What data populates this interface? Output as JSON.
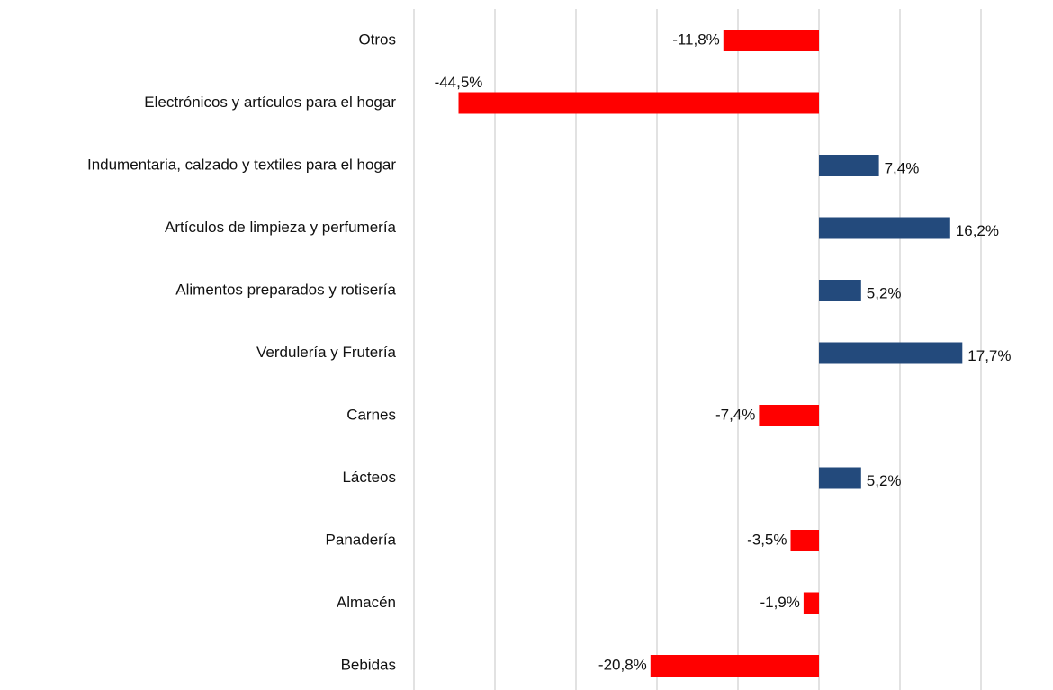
{
  "chart_data": {
    "type": "hbar",
    "categories": [
      "Otros",
      "Electrónicos y artículos para el hogar",
      "Indumentaria, calzado y textiles para el hogar",
      "Artículos de limpieza y perfumería",
      "Alimentos preparados y rotisería",
      "Verdulería y Frutería",
      "Carnes",
      "Lácteos",
      "Panadería",
      "Almacén",
      "Bebidas"
    ],
    "values": [
      -11.8,
      -44.5,
      7.4,
      16.2,
      5.2,
      17.7,
      -7.4,
      5.2,
      -3.5,
      -1.9,
      -20.8
    ],
    "value_labels": [
      "-11,8%",
      "-44,5%",
      "7,4%",
      "16,2%",
      "5,2%",
      "17,7%",
      "-7,4%",
      "5,2%",
      "-3,5%",
      "-1,9%",
      "-20,8%"
    ],
    "colors": [
      "#ff0000",
      "#ff0000",
      "#234a7c",
      "#234a7c",
      "#234a7c",
      "#234a7c",
      "#ff0000",
      "#234a7c",
      "#ff0000",
      "#ff0000",
      "#ff0000"
    ],
    "xlim": [
      -50,
      20
    ],
    "xticks": [
      -50,
      -40,
      -30,
      -20,
      -10,
      0,
      10,
      20
    ],
    "grid": true
  }
}
